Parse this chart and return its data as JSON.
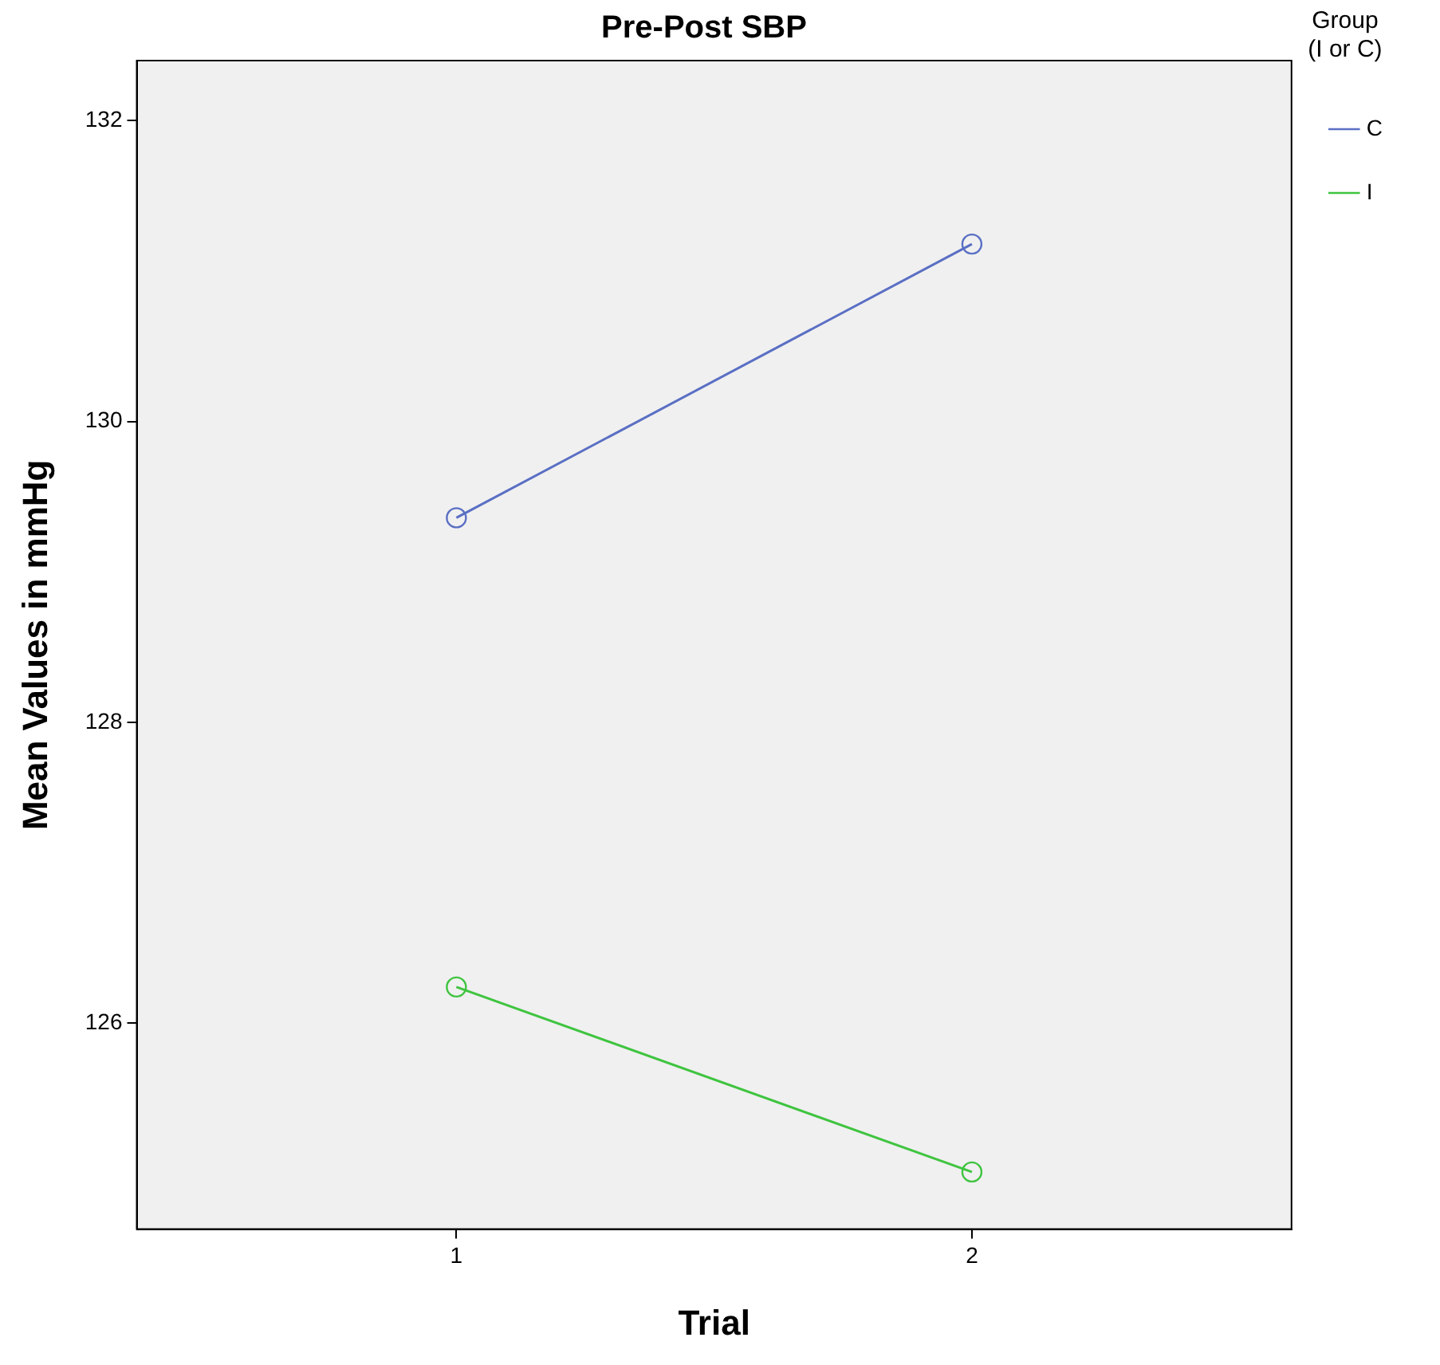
{
  "chart_data": {
    "type": "line",
    "title": "Pre-Post SBP",
    "xlabel": "Trial",
    "ylabel": "Mean Values in mmHg",
    "legend_title": "Group (I or C)",
    "x": [
      1,
      2
    ],
    "xlim": [
      0.38,
      2.62
    ],
    "xticks": [
      1,
      2
    ],
    "ylim": [
      124.63,
      132.4
    ],
    "yticks": [
      126,
      128,
      130,
      132
    ],
    "series": [
      {
        "name": "C",
        "color": "#5a6fc4",
        "values": [
          129.36,
          131.18
        ]
      },
      {
        "name": "I",
        "color": "#3fc43f",
        "values": [
          126.24,
          125.01
        ]
      }
    ],
    "grid": false,
    "legend": "top right",
    "marker": "circle",
    "line_style": "solid"
  }
}
